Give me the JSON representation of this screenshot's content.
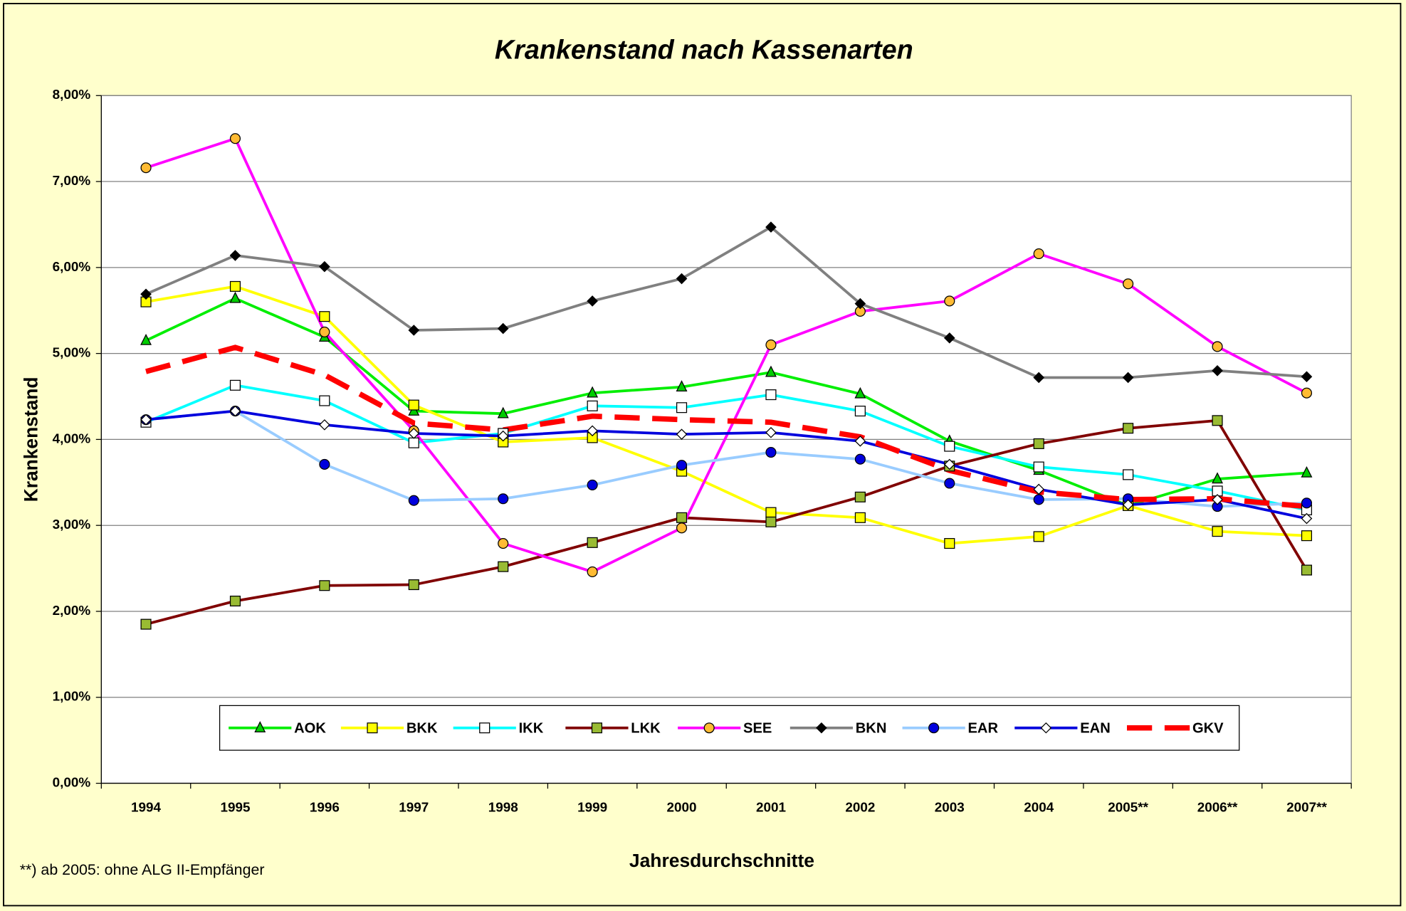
{
  "chart_data": {
    "type": "line",
    "title": "Krankenstand nach Kassenarten",
    "x_label": "Jahresdurchschnitte",
    "y_label": "Krankenstand",
    "footnote": "**) ab 2005: ohne ALG II-Empfänger",
    "categories": [
      "1994",
      "1995",
      "1996",
      "1997",
      "1998",
      "1999",
      "2000",
      "2001",
      "2002",
      "2003",
      "2004",
      "2005**",
      "2006**",
      "2007**"
    ],
    "ylim": [
      0,
      8
    ],
    "yticks": [
      {
        "value": 0,
        "label": "0,00%"
      },
      {
        "value": 1,
        "label": "1,00%"
      },
      {
        "value": 2,
        "label": "2,00%"
      },
      {
        "value": 3,
        "label": "3,00%"
      },
      {
        "value": 4,
        "label": "4,00%"
      },
      {
        "value": 5,
        "label": "5,00%"
      },
      {
        "value": 6,
        "label": "6,00%"
      },
      {
        "value": 7,
        "label": "7,00%"
      },
      {
        "value": 8,
        "label": "8,00%"
      }
    ],
    "grid": true,
    "legend": "bottom",
    "series": [
      {
        "name": "AOK",
        "color": "#00ee00",
        "marker": "triangle",
        "marker_color": "#00cc00",
        "values": [
          5.15,
          5.64,
          5.19,
          4.33,
          4.3,
          4.54,
          4.61,
          4.78,
          4.53,
          3.98,
          3.64,
          3.23,
          3.54,
          3.61
        ]
      },
      {
        "name": "BKK",
        "color": "#ffff00",
        "marker": "square",
        "marker_color": "#ffff00",
        "values": [
          5.6,
          5.78,
          5.43,
          4.4,
          3.97,
          4.02,
          3.63,
          3.15,
          3.09,
          2.79,
          2.87,
          3.23,
          2.93,
          2.88
        ]
      },
      {
        "name": "IKK",
        "color": "#00ffff",
        "marker": "square",
        "marker_color": "#ffffff",
        "values": [
          4.2,
          4.63,
          4.45,
          3.96,
          4.07,
          4.39,
          4.37,
          4.52,
          4.33,
          3.92,
          3.68,
          3.59,
          3.4,
          3.18
        ]
      },
      {
        "name": "LKK",
        "color": "#800000",
        "marker": "square",
        "marker_color": "#99bb33",
        "values": [
          1.85,
          2.12,
          2.3,
          2.31,
          2.52,
          2.8,
          3.09,
          3.04,
          3.33,
          3.69,
          3.95,
          4.13,
          4.22,
          2.48
        ]
      },
      {
        "name": "SEE",
        "color": "#ff00ff",
        "marker": "circle",
        "marker_color": "#ffbb33",
        "values": [
          7.16,
          7.5,
          5.25,
          4.1,
          2.79,
          2.46,
          2.97,
          5.1,
          5.49,
          5.61,
          6.16,
          5.81,
          5.08,
          4.54
        ]
      },
      {
        "name": "BKN",
        "color": "#808080",
        "marker": "diamond",
        "marker_color": "#000000",
        "values": [
          5.69,
          6.14,
          6.01,
          5.27,
          5.29,
          5.61,
          5.87,
          6.47,
          5.58,
          5.18,
          4.72,
          4.72,
          4.8,
          4.73
        ]
      },
      {
        "name": "EAR",
        "color": "#99ccff",
        "marker": "circle",
        "marker_color": "#0000dd",
        "values": [
          4.23,
          4.33,
          3.71,
          3.29,
          3.31,
          3.47,
          3.7,
          3.85,
          3.77,
          3.49,
          3.3,
          3.31,
          3.22,
          3.26
        ]
      },
      {
        "name": "EAN",
        "color": "#0000dd",
        "marker": "diamond",
        "marker_color": "#ffffff",
        "values": [
          4.23,
          4.33,
          4.17,
          4.07,
          4.04,
          4.1,
          4.06,
          4.08,
          3.98,
          3.71,
          3.42,
          3.24,
          3.3,
          3.08
        ]
      },
      {
        "name": "GKV",
        "color": "#ff0000",
        "dashed": true,
        "marker": "none",
        "values": [
          4.79,
          5.07,
          4.75,
          4.19,
          4.11,
          4.27,
          4.23,
          4.2,
          4.03,
          3.64,
          3.39,
          3.3,
          3.31,
          3.22
        ]
      }
    ]
  }
}
